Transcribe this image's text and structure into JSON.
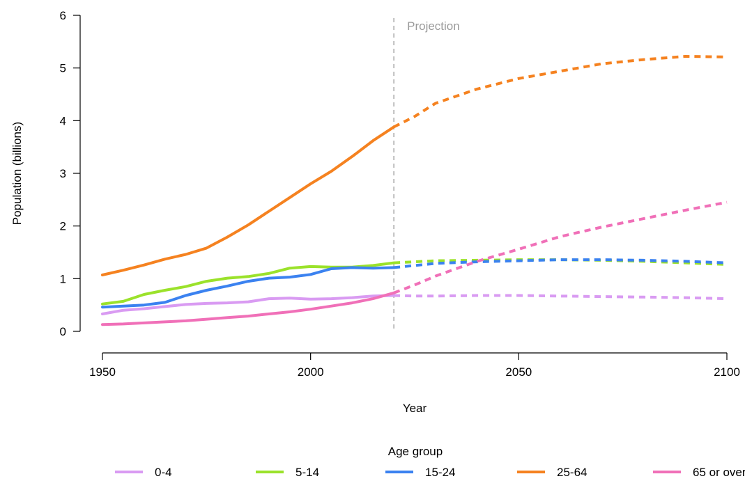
{
  "chart_data": {
    "type": "line",
    "title": "",
    "xlabel": "Year",
    "ylabel": "Population (billions)",
    "xlim": [
      1950,
      2100
    ],
    "ylim": [
      0,
      6
    ],
    "x_ticks": [
      1950,
      2000,
      2050,
      2100
    ],
    "y_ticks": [
      0,
      1,
      2,
      3,
      4,
      5,
      6
    ],
    "grid": false,
    "projection_start": 2020,
    "projection_label": "Projection",
    "legend": {
      "title": "Age group",
      "position": "bottom"
    },
    "series": [
      {
        "name": "0-4",
        "color": "#d99bf2",
        "x": [
          1950,
          1955,
          1960,
          1965,
          1970,
          1975,
          1980,
          1985,
          1990,
          1995,
          2000,
          2005,
          2010,
          2015,
          2020,
          2025,
          2030,
          2040,
          2050,
          2060,
          2070,
          2080,
          2090,
          2100
        ],
        "y": [
          0.33,
          0.4,
          0.43,
          0.47,
          0.51,
          0.53,
          0.54,
          0.56,
          0.62,
          0.63,
          0.61,
          0.62,
          0.64,
          0.67,
          0.68,
          0.67,
          0.67,
          0.68,
          0.68,
          0.67,
          0.66,
          0.65,
          0.64,
          0.62
        ]
      },
      {
        "name": "5-14",
        "color": "#9be22b",
        "x": [
          1950,
          1955,
          1960,
          1965,
          1970,
          1975,
          1980,
          1985,
          1990,
          1995,
          2000,
          2005,
          2010,
          2015,
          2020,
          2025,
          2030,
          2040,
          2050,
          2060,
          2070,
          2080,
          2090,
          2100
        ],
        "y": [
          0.52,
          0.57,
          0.7,
          0.78,
          0.85,
          0.95,
          1.01,
          1.04,
          1.1,
          1.2,
          1.23,
          1.22,
          1.22,
          1.25,
          1.3,
          1.32,
          1.34,
          1.35,
          1.36,
          1.36,
          1.35,
          1.33,
          1.3,
          1.27
        ]
      },
      {
        "name": "15-24",
        "color": "#3b82f0",
        "x": [
          1950,
          1955,
          1960,
          1965,
          1970,
          1975,
          1980,
          1985,
          1990,
          1995,
          2000,
          2005,
          2010,
          2015,
          2020,
          2025,
          2030,
          2040,
          2050,
          2060,
          2070,
          2080,
          2090,
          2100
        ],
        "y": [
          0.46,
          0.48,
          0.5,
          0.55,
          0.68,
          0.78,
          0.86,
          0.95,
          1.01,
          1.03,
          1.08,
          1.19,
          1.21,
          1.2,
          1.21,
          1.25,
          1.29,
          1.32,
          1.34,
          1.36,
          1.36,
          1.35,
          1.33,
          1.3
        ]
      },
      {
        "name": "25-64",
        "color": "#f58220",
        "x": [
          1950,
          1955,
          1960,
          1965,
          1970,
          1975,
          1980,
          1985,
          1990,
          1995,
          2000,
          2005,
          2010,
          2015,
          2020,
          2025,
          2030,
          2040,
          2050,
          2060,
          2070,
          2080,
          2090,
          2100
        ],
        "y": [
          1.07,
          1.16,
          1.26,
          1.37,
          1.46,
          1.58,
          1.79,
          2.02,
          2.28,
          2.54,
          2.8,
          3.04,
          3.32,
          3.62,
          3.88,
          4.08,
          4.33,
          4.6,
          4.8,
          4.94,
          5.08,
          5.16,
          5.22,
          5.21
        ]
      },
      {
        "name": "65 or over",
        "color": "#f070b8",
        "x": [
          1950,
          1955,
          1960,
          1965,
          1970,
          1975,
          1980,
          1985,
          1990,
          1995,
          2000,
          2005,
          2010,
          2015,
          2020,
          2025,
          2030,
          2040,
          2050,
          2060,
          2070,
          2080,
          2090,
          2100
        ],
        "y": [
          0.13,
          0.14,
          0.16,
          0.18,
          0.2,
          0.23,
          0.26,
          0.29,
          0.33,
          0.37,
          0.42,
          0.48,
          0.54,
          0.62,
          0.73,
          0.88,
          1.05,
          1.33,
          1.56,
          1.8,
          1.98,
          2.14,
          2.3,
          2.45
        ]
      }
    ]
  }
}
